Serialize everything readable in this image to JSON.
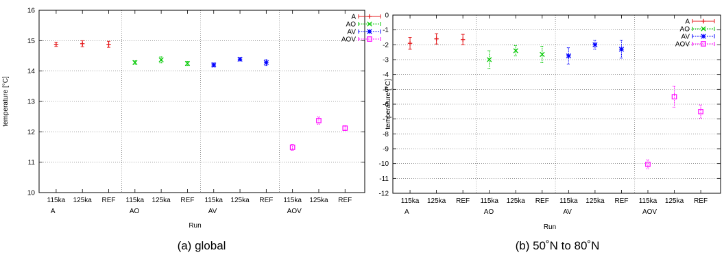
{
  "chart_data": [
    {
      "type": "scatter",
      "caption": "(a) global",
      "xlabel": "Run",
      "ylabel": "temperature [°C]",
      "ylim": [
        10,
        16
      ],
      "yticks": [
        10,
        11,
        12,
        13,
        14,
        15,
        16
      ],
      "categories": [
        "115ka",
        "125ka",
        "REF",
        "115ka",
        "125ka",
        "REF",
        "115ka",
        "125ka",
        "REF",
        "115ka",
        "125ka",
        "REF"
      ],
      "groups": [
        "A",
        "AO",
        "AV",
        "AOV"
      ],
      "grid": true,
      "legend_position": "top-right",
      "series": [
        {
          "name": "A",
          "color": "#e41a1c",
          "marker": "plus",
          "x": [
            0,
            1,
            2
          ],
          "y": [
            14.88,
            14.9,
            14.88
          ],
          "err": [
            0.07,
            0.1,
            0.1
          ]
        },
        {
          "name": "AO",
          "color": "#00c800",
          "marker": "x",
          "x": [
            3,
            4,
            5
          ],
          "y": [
            14.28,
            14.37,
            14.25
          ],
          "err": [
            0.06,
            0.1,
            0.07
          ]
        },
        {
          "name": "AV",
          "color": "#0000ff",
          "marker": "star",
          "x": [
            6,
            7,
            8
          ],
          "y": [
            14.2,
            14.39,
            14.28
          ],
          "err": [
            0.07,
            0.05,
            0.1
          ]
        },
        {
          "name": "AOV",
          "color": "#ff00ff",
          "marker": "square",
          "x": [
            9,
            10,
            11
          ],
          "y": [
            11.49,
            12.37,
            12.12
          ],
          "err": [
            0.1,
            0.12,
            0.08
          ]
        }
      ]
    },
    {
      "type": "scatter",
      "caption": "(b) 50˚N to 80˚N",
      "xlabel": "Run",
      "ylabel": "temperature [°C]",
      "ylim": [
        -12,
        0
      ],
      "yticks": [
        -12,
        -11,
        -10,
        -9,
        -8,
        -7,
        -6,
        -5,
        -4,
        -3,
        -2,
        -1,
        0
      ],
      "categories": [
        "115ka",
        "125ka",
        "REF",
        "115ka",
        "125ka",
        "REF",
        "115ka",
        "125ka",
        "REF",
        "115ka",
        "125ka",
        "REF"
      ],
      "groups": [
        "A",
        "AO",
        "AV",
        "AOV"
      ],
      "grid": true,
      "legend_position": "top-right",
      "series": [
        {
          "name": "A",
          "color": "#e41a1c",
          "marker": "plus",
          "x": [
            0,
            1,
            2
          ],
          "y": [
            -1.9,
            -1.6,
            -1.65
          ],
          "err": [
            0.4,
            0.35,
            0.35
          ]
        },
        {
          "name": "AO",
          "color": "#00c800",
          "marker": "x",
          "x": [
            3,
            4,
            5
          ],
          "y": [
            -3.0,
            -2.4,
            -2.65
          ],
          "err": [
            0.6,
            0.35,
            0.55
          ]
        },
        {
          "name": "AV",
          "color": "#0000ff",
          "marker": "star",
          "x": [
            6,
            7,
            8
          ],
          "y": [
            -2.75,
            -2.0,
            -2.3
          ],
          "err": [
            0.55,
            0.3,
            0.6
          ]
        },
        {
          "name": "AOV",
          "color": "#ff00ff",
          "marker": "square",
          "x": [
            9,
            10,
            11
          ],
          "y": [
            -10.05,
            -5.5,
            -6.5
          ],
          "err": [
            0.3,
            0.7,
            0.45
          ]
        }
      ]
    }
  ]
}
